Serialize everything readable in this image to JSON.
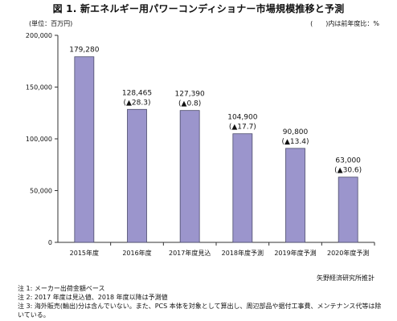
{
  "title": "図 1. 新エネルギー用パワーコンディショナー市場規模推移と予測",
  "unit_label": "(単位：百万円)",
  "paren_note": "(　　)内は前年度比：%",
  "source": "矢野経済研究所推計",
  "notes": [
    "注 1: メーカー出荷金額ベース",
    "注 2: 2017 年度は見込値、2018 年度以降は予測値",
    "注 3: 海外販売(輸出)分は含んでいない。また、PCS 本体を対象として算出し、周辺部品や据付工事費、メンテナンス代等は除いている。"
  ],
  "chart_data": {
    "type": "bar",
    "title": "図 1. 新エネルギー用パワーコンディショナー市場規模推移と予測",
    "xlabel": "",
    "ylabel": "(単位：百万円)",
    "ylim": [
      0,
      200000
    ],
    "yticks": [
      "0",
      "50,000",
      "100,000",
      "150,000",
      "200,000"
    ],
    "categories": [
      "2015年度",
      "2016年度",
      "2017年度見込",
      "2018年度予測",
      "2019年度予測",
      "2020年度予測"
    ],
    "values": [
      179280,
      128465,
      127390,
      104900,
      90800,
      63000
    ],
    "value_labels": [
      "179,280",
      "128,465",
      "127,390",
      "104,900",
      "90,800",
      "63,000"
    ],
    "change_labels": [
      "",
      "(▲28.3)",
      "(▲0.8)",
      "(▲17.7)",
      "(▲13.4)",
      "(▲30.6)"
    ],
    "bar_color": "#9b95cc",
    "bar_border": "#4b4b6b",
    "grid": false
  }
}
